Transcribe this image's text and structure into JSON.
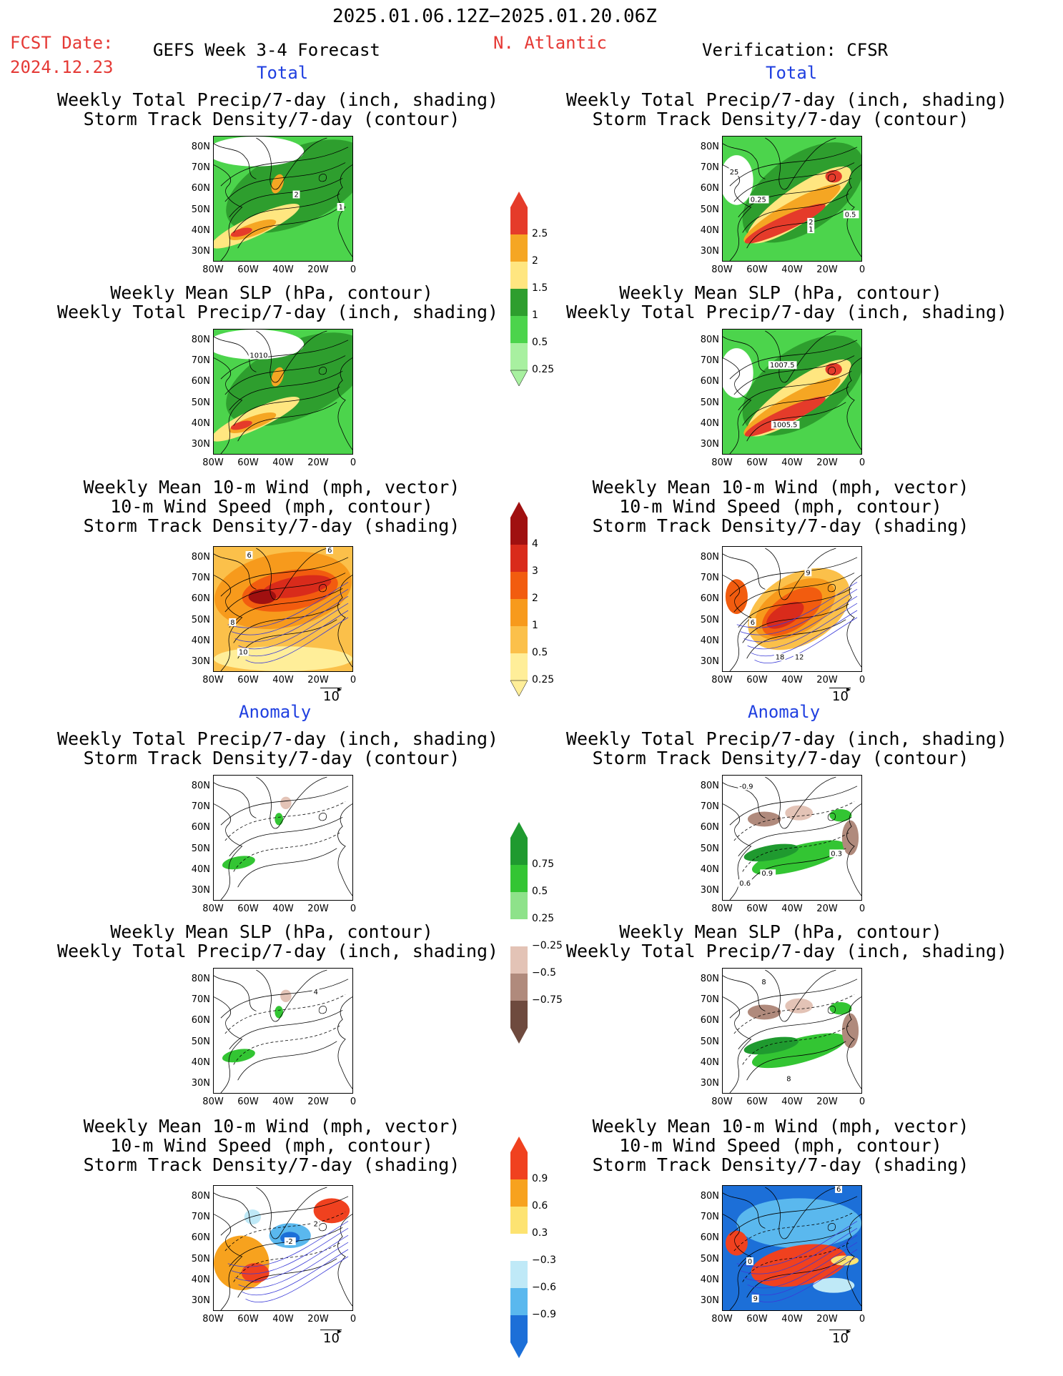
{
  "header": {
    "date_range": "2025.01.06.12Z−2025.01.20.06Z",
    "fcst_label": "FCST Date:",
    "fcst_date": "2024.12.23",
    "model_title": "GEFS Week 3-4 Forecast",
    "region": "N. Atlantic",
    "verification": "Verification: CFSR"
  },
  "sections": {
    "total": "Total",
    "anomaly": "Anomaly"
  },
  "panel_titles": {
    "precip_storm": "Weekly Total Precip/7-day (inch, shading)\nStorm Track Density/7-day (contour)",
    "slp_precip": "Weekly Mean SLP (hPa, contour)\nWeekly Total Precip/7-day (inch, shading)",
    "wind_storm": "Weekly Mean 10-m Wind (mph, vector)\n10-m Wind Speed (mph, contour)\nStorm Track Density/7-day (shading)"
  },
  "axes": {
    "lat_ticks": [
      "80N",
      "70N",
      "60N",
      "50N",
      "40N",
      "30N"
    ],
    "lon_ticks": [
      "80W",
      "60W",
      "40W",
      "20W",
      "0"
    ]
  },
  "vector_ref": "10",
  "colorbars": {
    "precip_total": {
      "labels": [
        "2.5",
        "2",
        "1.5",
        "1",
        "0.5",
        "0.25"
      ],
      "colors": [
        "#e53b2a",
        "#f5a623",
        "#ffe680",
        "#2e9e2e",
        "#4cd44c",
        "#a8f0a0"
      ]
    },
    "storm_total": {
      "labels": [
        "4",
        "3",
        "2",
        "1",
        "0.5",
        "0.25"
      ],
      "colors": [
        "#a01010",
        "#d92b1b",
        "#f25c0f",
        "#f79a1c",
        "#fbc04a",
        "#ffee99"
      ]
    },
    "precip_anom": {
      "labels": [
        "0.75",
        "0.5",
        "0.25",
        "−0.25",
        "−0.5",
        "−0.75"
      ],
      "colors": [
        "#1f9a2f",
        "#33c533",
        "#8ee28a",
        "#ffffff",
        "#e3c3b6",
        "#b08a7c",
        "#6e4a3e"
      ]
    },
    "storm_anom": {
      "labels": [
        "0.9",
        "0.6",
        "0.3",
        "−0.3",
        "−0.6",
        "−0.9"
      ],
      "colors": [
        "#f0411f",
        "#f7a21e",
        "#fde371",
        "#ffffff",
        "#bfe9f7",
        "#5ab8ee",
        "#1c6fd8"
      ]
    }
  },
  "contour_labels": {
    "gefs_total_precip": [
      "2",
      "1"
    ],
    "cfsr_total_precip": [
      "25",
      "0.25",
      "0.5",
      "2",
      "1"
    ],
    "gefs_total_slp": [
      "1010"
    ],
    "cfsr_total_slp": [
      "1007.5",
      "1005.5"
    ],
    "gefs_total_wind": [
      "6",
      "6",
      "8",
      "10"
    ],
    "cfsr_total_wind": [
      "9",
      "6",
      "18",
      "12"
    ],
    "gefs_anom_precip": [],
    "cfsr_anom_precip": [
      "-0.9",
      "0.9",
      "0.6",
      "0.3"
    ],
    "gefs_anom_slp": [
      "4"
    ],
    "cfsr_anom_slp": [
      "8",
      "8"
    ],
    "gefs_anom_wind": [
      "2",
      "-2"
    ],
    "cfsr_anom_wind": [
      "6",
      "0",
      "9"
    ]
  }
}
